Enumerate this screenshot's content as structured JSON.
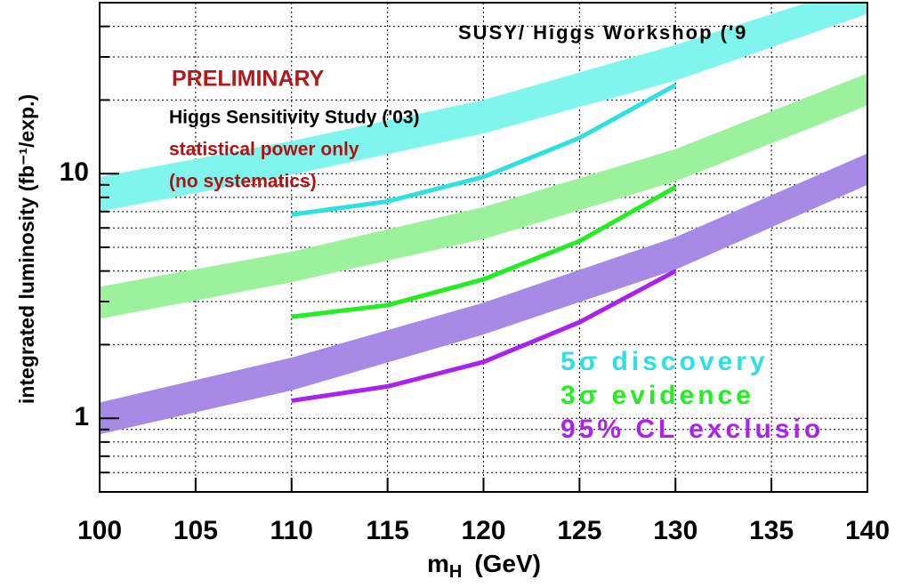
{
  "chart_data": {
    "type": "band-line",
    "log_y": true,
    "grid": true,
    "ylabel": "integrated luminosity (fb⁻¹/exp.)",
    "xlabel": [
      "m",
      "H",
      "(GeV)"
    ],
    "annotations": [
      "PRELIMINARY",
      "Higgs Sensitivity Study ('03)",
      "statistical power only",
      "(no systematics)",
      "SUSY/ Higgs Workshop ('9"
    ],
    "xlim": [
      100,
      140
    ],
    "xticks": [
      100,
      105,
      110,
      115,
      120,
      125,
      130,
      135,
      140
    ],
    "ylim": [
      0.5,
      50
    ],
    "yticks": [
      1,
      10
    ],
    "yminorticks": [
      0.5,
      0.6,
      0.7,
      0.8,
      0.9,
      2,
      3,
      4,
      5,
      6,
      7,
      8,
      9,
      20,
      30,
      40,
      50
    ],
    "band_x": [
      100,
      110,
      120,
      130,
      140
    ],
    "line_x": [
      110,
      115,
      120,
      125,
      130
    ],
    "series": [
      {
        "name": "5σ discovery",
        "color": "#2ee0e0",
        "band_color": "#80f5ee",
        "values": [
          6.8,
          7.7,
          9.7,
          14,
          23
        ],
        "band_upper": [
          9.7,
          13.6,
          20,
          33.6,
          60
        ],
        "band_lower": [
          7.0,
          9.9,
          14.6,
          24,
          45
        ]
      },
      {
        "name": "3σ evidence",
        "color": "#22ee22",
        "band_color": "#9cf29c",
        "values": [
          2.6,
          2.9,
          3.7,
          5.3,
          8.8
        ],
        "band_upper": [
          3.45,
          4.8,
          7.3,
          12.6,
          25.7
        ],
        "band_lower": [
          2.55,
          3.6,
          5.4,
          9.3,
          19
        ]
      },
      {
        "name": "95% CL exclusio",
        "color": "#aa22ee",
        "band_color": "#a68ae6",
        "values": [
          1.18,
          1.35,
          1.7,
          2.47,
          4.0
        ],
        "band_upper": [
          1.16,
          1.77,
          2.97,
          5.5,
          12.1
        ],
        "band_lower": [
          0.86,
          1.3,
          2.2,
          4.05,
          9
        ]
      }
    ]
  }
}
